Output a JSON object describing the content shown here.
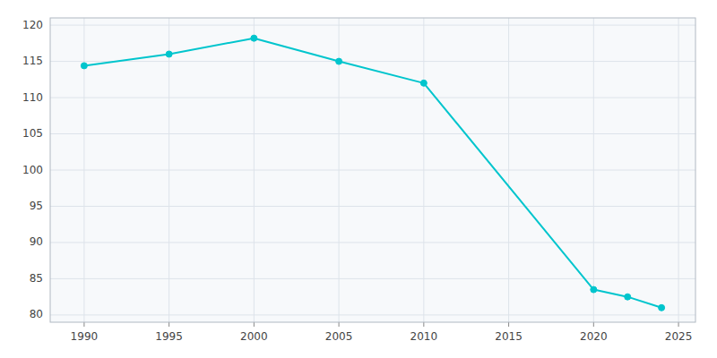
{
  "chart_data": {
    "type": "line",
    "x": [
      1990,
      1995,
      2000,
      2005,
      2010,
      2020,
      2022,
      2024
    ],
    "values": [
      114.4,
      116.0,
      118.2,
      115.0,
      112.0,
      83.5,
      82.5,
      81.0
    ],
    "color": "#00C5CD",
    "marker": "circle",
    "xlim": [
      1988,
      2026
    ],
    "ylim": [
      79,
      121
    ],
    "xticks": [
      1990,
      1995,
      2000,
      2005,
      2010,
      2015,
      2020,
      2025
    ],
    "yticks": [
      80,
      85,
      90,
      95,
      100,
      105,
      110,
      115,
      120
    ],
    "grid": true
  }
}
